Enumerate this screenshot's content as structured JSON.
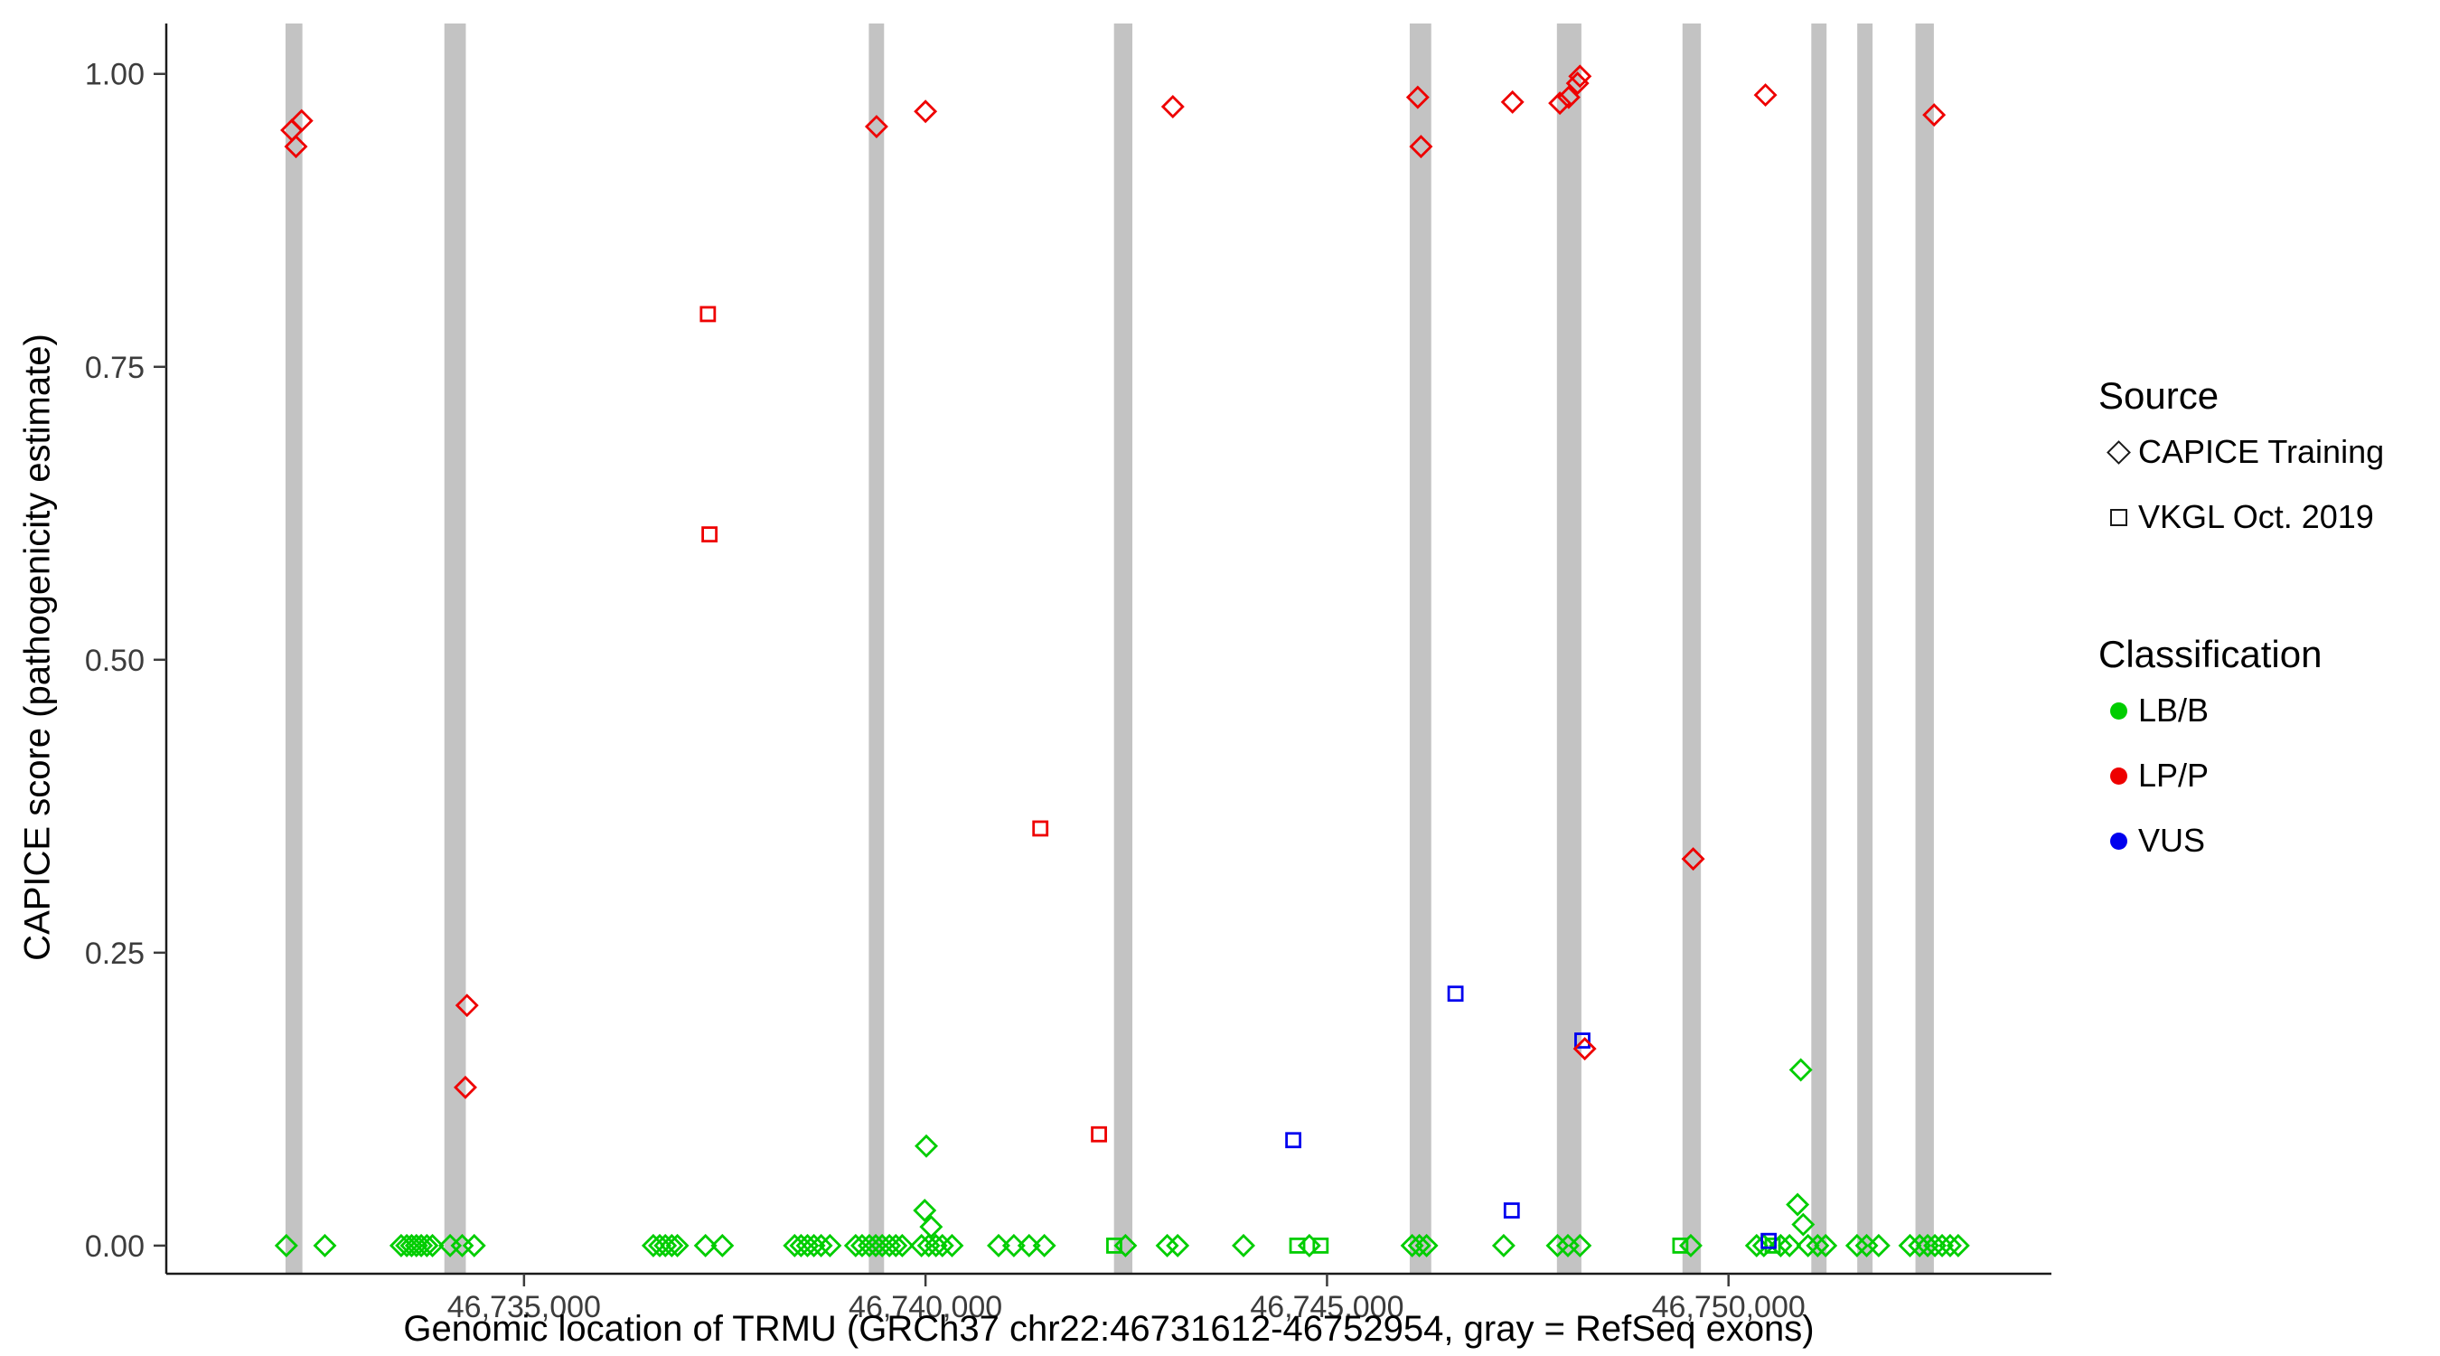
{
  "figure": {
    "title": ""
  },
  "legend": {
    "source": {
      "title": "Source",
      "items": [
        {
          "label": "CAPICE Training",
          "marker": "diamond"
        },
        {
          "label": "VKGL Oct. 2019",
          "marker": "square"
        }
      ]
    },
    "classification": {
      "title": "Classification",
      "items": [
        {
          "label": "LB/B",
          "color": "#00cd00"
        },
        {
          "label": "LP/P",
          "color": "#ee0000"
        },
        {
          "label": "VUS",
          "color": "#0000ee"
        }
      ]
    }
  },
  "chart_data": {
    "type": "scatter",
    "title": "",
    "xlabel": "Genomic location of TRMU (GRCh37 chr22:46731612-46752954, gray = RefSeq exons)",
    "ylabel": "CAPICE score (pathogenicity estimate)",
    "x_domain": [
      46730545,
      46754021
    ],
    "y_domain": [
      -0.024,
      1.043
    ],
    "x_ticks": [
      {
        "value": 46735000,
        "label": "46,735,000"
      },
      {
        "value": 46740000,
        "label": "46,740,000"
      },
      {
        "value": 46745000,
        "label": "46,745,000"
      },
      {
        "value": 46750000,
        "label": "46,750,000"
      }
    ],
    "y_ticks": [
      {
        "value": 0.0,
        "label": "0.00"
      },
      {
        "value": 0.25,
        "label": "0.25"
      },
      {
        "value": 0.5,
        "label": "0.50"
      },
      {
        "value": 0.75,
        "label": "0.75"
      },
      {
        "value": 1.0,
        "label": "1.00"
      }
    ],
    "colors": {
      "LB": "#00cd00",
      "LP": "#ee0000",
      "VUS": "#0000ee",
      "exon": "#c3c3c3",
      "axis": "#1a1a1a",
      "tick_label": "#3c3c3c"
    },
    "source_codes": {
      "T": "CAPICE Training",
      "V": "VKGL Oct. 2019"
    },
    "class_codes": {
      "LB": "LB/B",
      "LP": "LP/P",
      "VUS": "VUS"
    },
    "exons": [
      [
        46732030,
        46732240
      ],
      [
        46734008,
        46734275
      ],
      [
        46739294,
        46739484
      ],
      [
        46742347,
        46742576
      ],
      [
        46746030,
        46746298
      ],
      [
        46747863,
        46748168
      ],
      [
        46749427,
        46749656
      ],
      [
        46751031,
        46751221
      ],
      [
        46751603,
        46751794
      ],
      [
        46752328,
        46752557
      ]
    ],
    "points_format": [
      "x",
      "y",
      "classification_code",
      "source_code"
    ],
    "points": [
      [
        46732040,
        0,
        "LB",
        "T"
      ],
      [
        46732520,
        0,
        "LB",
        "T"
      ],
      [
        46733470,
        0,
        "LB",
        "T"
      ],
      [
        46733540,
        0,
        "LB",
        "T"
      ],
      [
        46733600,
        0,
        "LB",
        "T"
      ],
      [
        46733660,
        0,
        "LB",
        "T"
      ],
      [
        46733720,
        0,
        "LB",
        "T"
      ],
      [
        46733790,
        0,
        "LB",
        "T"
      ],
      [
        46733860,
        0,
        "LB",
        "T"
      ],
      [
        46734080,
        0,
        "LB",
        "T"
      ],
      [
        46734230,
        0,
        "LB",
        "T"
      ],
      [
        46734380,
        0,
        "LB",
        "T"
      ],
      [
        46736610,
        0,
        "LB",
        "T"
      ],
      [
        46736690,
        0,
        "LB",
        "T"
      ],
      [
        46736760,
        0,
        "LB",
        "T"
      ],
      [
        46736840,
        0,
        "LB",
        "T"
      ],
      [
        46736910,
        0,
        "LB",
        "T"
      ],
      [
        46737260,
        0,
        "LB",
        "T"
      ],
      [
        46737470,
        0,
        "LB",
        "T"
      ],
      [
        46738370,
        0,
        "LB",
        "T"
      ],
      [
        46738450,
        0,
        "LB",
        "T"
      ],
      [
        46738530,
        0,
        "LB",
        "T"
      ],
      [
        46738610,
        0,
        "LB",
        "T"
      ],
      [
        46738700,
        0,
        "LB",
        "T"
      ],
      [
        46738810,
        0,
        "LB",
        "T"
      ],
      [
        46739130,
        0,
        "LB",
        "T"
      ],
      [
        46739210,
        0,
        "LB",
        "T"
      ],
      [
        46739300,
        0,
        "LB",
        "T"
      ],
      [
        46739380,
        0,
        "LB",
        "T"
      ],
      [
        46739460,
        0,
        "LB",
        "T"
      ],
      [
        46739550,
        0,
        "LB",
        "T"
      ],
      [
        46739630,
        0,
        "LB",
        "T"
      ],
      [
        46739710,
        0,
        "LB",
        "T"
      ],
      [
        46739950,
        0,
        "LB",
        "T"
      ],
      [
        46740040,
        0,
        "LB",
        "T"
      ],
      [
        46740130,
        0,
        "LB",
        "T"
      ],
      [
        46740210,
        0,
        "LB",
        "T"
      ],
      [
        46740330,
        0,
        "LB",
        "T"
      ],
      [
        46739990,
        0.03,
        "LB",
        "T"
      ],
      [
        46740010,
        0.085,
        "LB",
        "T"
      ],
      [
        46740070,
        0.016,
        "LB",
        "T"
      ],
      [
        46740910,
        0,
        "LB",
        "T"
      ],
      [
        46741100,
        0,
        "LB",
        "T"
      ],
      [
        46741290,
        0,
        "LB",
        "T"
      ],
      [
        46741480,
        0,
        "LB",
        "T"
      ],
      [
        46742350,
        0,
        "LB",
        "V"
      ],
      [
        46742490,
        0,
        "LB",
        "T"
      ],
      [
        46743010,
        0,
        "LB",
        "T"
      ],
      [
        46743140,
        0,
        "LB",
        "T"
      ],
      [
        46743960,
        0,
        "LB",
        "T"
      ],
      [
        46744630,
        0,
        "LB",
        "V"
      ],
      [
        46744780,
        0,
        "LB",
        "T"
      ],
      [
        46744920,
        0,
        "LB",
        "V"
      ],
      [
        46746060,
        0,
        "LB",
        "T"
      ],
      [
        46746150,
        0,
        "LB",
        "T"
      ],
      [
        46746240,
        0,
        "LB",
        "T"
      ],
      [
        46747200,
        0,
        "LB",
        "T"
      ],
      [
        46747870,
        0,
        "LB",
        "T"
      ],
      [
        46748000,
        0,
        "LB",
        "T"
      ],
      [
        46748150,
        0,
        "LB",
        "T"
      ],
      [
        46749400,
        0,
        "LB",
        "V"
      ],
      [
        46749530,
        0,
        "LB",
        "T"
      ],
      [
        46750350,
        0,
        "LB",
        "T"
      ],
      [
        46750440,
        0,
        "LB",
        "T"
      ],
      [
        46750550,
        0,
        "LB",
        "V"
      ],
      [
        46750650,
        0,
        "LB",
        "T"
      ],
      [
        46750760,
        0,
        "LB",
        "T"
      ],
      [
        46750990,
        0,
        "LB",
        "T"
      ],
      [
        46751110,
        0,
        "LB",
        "T"
      ],
      [
        46751210,
        0,
        "LB",
        "T"
      ],
      [
        46750860,
        0.035,
        "LB",
        "T"
      ],
      [
        46750930,
        0.018,
        "LB",
        "T"
      ],
      [
        46750900,
        0.15,
        "LB",
        "T"
      ],
      [
        46751600,
        0,
        "LB",
        "T"
      ],
      [
        46751720,
        0,
        "LB",
        "T"
      ],
      [
        46751870,
        0,
        "LB",
        "T"
      ],
      [
        46752260,
        0,
        "LB",
        "T"
      ],
      [
        46752380,
        0,
        "LB",
        "T"
      ],
      [
        46752480,
        0,
        "LB",
        "T"
      ],
      [
        46752570,
        0,
        "LB",
        "T"
      ],
      [
        46752660,
        0,
        "LB",
        "T"
      ],
      [
        46752760,
        0,
        "LB",
        "T"
      ],
      [
        46752860,
        0,
        "LB",
        "T"
      ],
      [
        46744580,
        0.09,
        "VUS",
        "V"
      ],
      [
        46746600,
        0.215,
        "VUS",
        "V"
      ],
      [
        46747300,
        0.03,
        "VUS",
        "V"
      ],
      [
        46748180,
        0.175,
        "VUS",
        "V"
      ],
      [
        46750500,
        0.004,
        "VUS",
        "V"
      ],
      [
        46732110,
        0.952,
        "LP",
        "T"
      ],
      [
        46732230,
        0.96,
        "LP",
        "T"
      ],
      [
        46732160,
        0.938,
        "LP",
        "T"
      ],
      [
        46734290,
        0.205,
        "LP",
        "T"
      ],
      [
        46734270,
        0.135,
        "LP",
        "T"
      ],
      [
        46737290,
        0.795,
        "LP",
        "V"
      ],
      [
        46737310,
        0.607,
        "LP",
        "V"
      ],
      [
        46739390,
        0.955,
        "LP",
        "T"
      ],
      [
        46740000,
        0.968,
        "LP",
        "T"
      ],
      [
        46741430,
        0.356,
        "LP",
        "V"
      ],
      [
        46742160,
        0.095,
        "LP",
        "V"
      ],
      [
        46743080,
        0.972,
        "LP",
        "T"
      ],
      [
        46746130,
        0.98,
        "LP",
        "T"
      ],
      [
        46746170,
        0.938,
        "LP",
        "T"
      ],
      [
        46747310,
        0.976,
        "LP",
        "T"
      ],
      [
        46747900,
        0.975,
        "LP",
        "T"
      ],
      [
        46748010,
        0.98,
        "LP",
        "T"
      ],
      [
        46748120,
        0.992,
        "LP",
        "T"
      ],
      [
        46748150,
        0.998,
        "LP",
        "T"
      ],
      [
        46748210,
        0.168,
        "LP",
        "T"
      ],
      [
        46749560,
        0.33,
        "LP",
        "T"
      ],
      [
        46750460,
        0.982,
        "LP",
        "T"
      ],
      [
        46752560,
        0.965,
        "LP",
        "T"
      ]
    ]
  }
}
